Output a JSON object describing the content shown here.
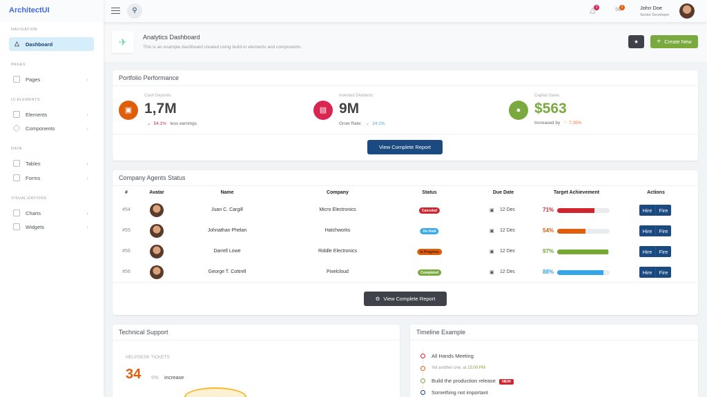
{
  "app": {
    "title": "ArchitectUI"
  },
  "sidebar": {
    "sections": [
      {
        "label": "NAVIGATION",
        "items": [
          {
            "label": "Dashboard",
            "icon": "bell-icon",
            "active": true
          }
        ]
      },
      {
        "label": "PAGES",
        "items": [
          {
            "label": "Pages",
            "icon": "page-icon"
          }
        ]
      },
      {
        "label": "UI ELEMENTS",
        "items": [
          {
            "label": "Elements",
            "icon": "car-icon"
          },
          {
            "label": "Components",
            "icon": "diamond-icon"
          }
        ]
      },
      {
        "label": "DATA",
        "items": [
          {
            "label": "Tables",
            "icon": "table-icon"
          },
          {
            "label": "Forms",
            "icon": "form-icon"
          }
        ]
      },
      {
        "label": "VISUALIZATIONS",
        "items": [
          {
            "label": "Charts",
            "icon": "chart-icon"
          },
          {
            "label": "Widgets",
            "icon": "box-icon"
          }
        ]
      }
    ]
  },
  "header": {
    "notifications": "3",
    "messages": "2",
    "user_name": "John Doe",
    "user_role": "Senior Developer"
  },
  "page": {
    "title": "Analytics Dashboard",
    "subtitle": "This is an example dashboard created using build-in elements and components.",
    "create_label": "Create New"
  },
  "portfolio": {
    "title": "Portfolio Performance",
    "stats": [
      {
        "label": "Cash Deposits",
        "value": "1,7M",
        "prefix": "",
        "change": "54.1%",
        "suffix": "less earnings",
        "color": "#e05d0c",
        "changeColor": "#d92550"
      },
      {
        "label": "Invested Dividents",
        "value": "9M",
        "prefix": "Grow Rate:",
        "change": "14.1%",
        "suffix": "",
        "color": "#d92550",
        "changeColor": "#3ac47d"
      },
      {
        "label": "Capital Gains",
        "value": "$563",
        "prefix": "Increased by",
        "change": "7.35%",
        "suffix": "",
        "color": "#79a93f",
        "changeColor": "#f7b924"
      }
    ],
    "button": "View Complete Report"
  },
  "agents": {
    "title": "Company Agents Status",
    "columns": [
      "#",
      "Avatar",
      "Name",
      "Company",
      "Status",
      "Due Date",
      "Target Achievement",
      "Actions"
    ],
    "rows": [
      {
        "id": "#54",
        "name": "Juan C. Cargill",
        "company": "Micro Electronics",
        "status": "Canceled",
        "statusColor": "#d0242f",
        "due": "12 Dec",
        "target": "71%",
        "pct": 71,
        "color": "#d0242f"
      },
      {
        "id": "#55",
        "name": "Johnathan Phelan",
        "company": "Hatchworks",
        "status": "On Hold",
        "statusColor": "#3ba8e8",
        "due": "12 Dec",
        "target": "54%",
        "pct": 54,
        "color": "#e05d0c"
      },
      {
        "id": "#56",
        "name": "Darrell Lowe",
        "company": "Riddle Electronics",
        "status": "In Progress",
        "statusColor": "#e05d0c",
        "due": "12 Dec",
        "target": "97%",
        "pct": 97,
        "color": "#74a734"
      },
      {
        "id": "#56",
        "name": "George T. Cottrell",
        "company": "Pixelcloud",
        "status": "Completed",
        "statusColor": "#79a93f",
        "due": "12 Dec",
        "target": "88%",
        "pct": 88,
        "color": "#35a6e8"
      }
    ],
    "hire": "Hire",
    "fire": "Fire",
    "button": "View Complete Report"
  },
  "support": {
    "title": "Technical Support",
    "label": "HELPDESK TICKETS",
    "value": "34",
    "change": "5%",
    "suffix": "increase"
  },
  "timeline": {
    "title": "Timeline Example",
    "items": [
      {
        "text": "All Hands Meeting",
        "color": "#d0242f"
      },
      {
        "text": "Yet another one, at",
        "time": "15:00 PM",
        "color": "#e05d0c"
      },
      {
        "text": "Build the production release",
        "badge": "NEW",
        "color": "#79a93f"
      },
      {
        "text": "Something not important",
        "color": "#1b3e6f"
      }
    ]
  }
}
